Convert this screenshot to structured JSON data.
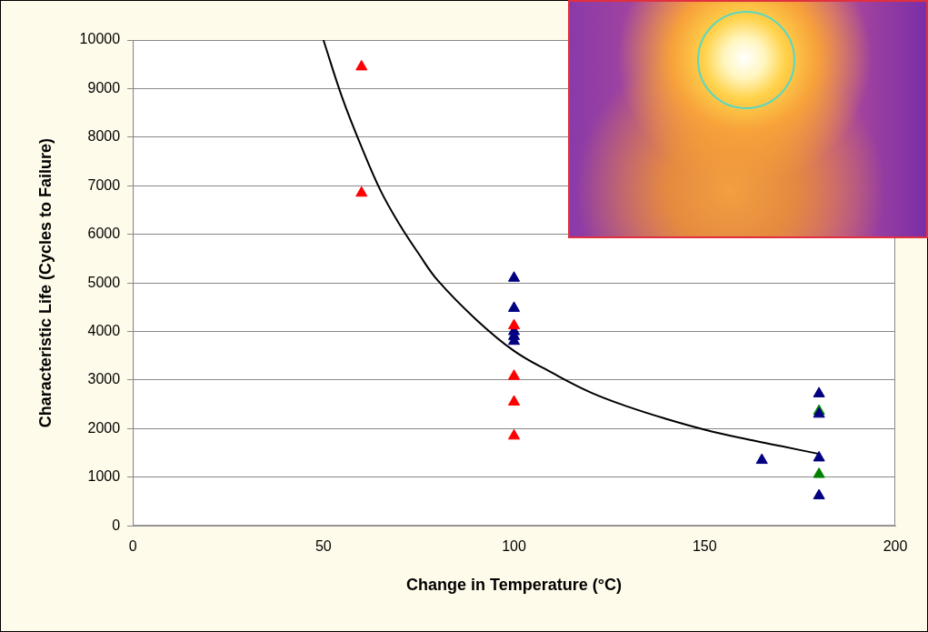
{
  "chart_data": {
    "type": "scatter",
    "x_label": "Change in Temperature (°C)",
    "y_label": "Characteristic Life (Cycles to Failure)",
    "xlim": [
      0,
      200
    ],
    "xticks": [
      0,
      50,
      100,
      150,
      200
    ],
    "ylim": [
      0,
      10000
    ],
    "yticks": [
      0,
      1000,
      2000,
      3000,
      4000,
      5000,
      6000,
      7000,
      8000,
      9000,
      10000
    ],
    "grid": "y",
    "series": [
      {
        "type": "line",
        "color": "#000000",
        "line_style": "solid",
        "x": [
          50,
          55,
          60,
          65,
          70,
          75,
          80,
          90,
          100,
          110,
          120,
          130,
          140,
          150,
          160,
          170,
          180
        ],
        "values": [
          10000,
          8800,
          7800,
          6900,
          6200,
          5600,
          5050,
          4250,
          3600,
          3150,
          2750,
          2450,
          2200,
          1980,
          1800,
          1640,
          1480
        ]
      },
      {
        "type": "scatter",
        "color": "#ff0000",
        "marker": "triangle",
        "x": [
          60,
          60,
          100,
          100,
          100,
          100
        ],
        "values": [
          9450,
          6850,
          4120,
          3080,
          2550,
          1850
        ]
      },
      {
        "type": "scatter",
        "color": "#000080",
        "marker": "triangle",
        "x": [
          100,
          100,
          100,
          100,
          100,
          165,
          180,
          180,
          180,
          180
        ],
        "values": [
          5100,
          4480,
          4000,
          3900,
          3800,
          1350,
          2720,
          2300,
          1400,
          620
        ]
      },
      {
        "type": "scatter",
        "color": "#008000",
        "marker": "triangle",
        "x": [
          180,
          180
        ],
        "values": [
          2360,
          1060
        ]
      }
    ]
  }
}
